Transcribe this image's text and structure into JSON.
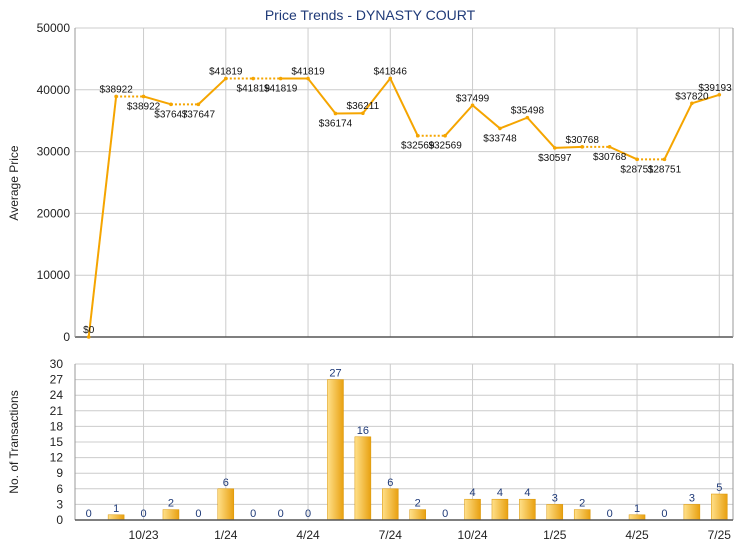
{
  "title": "Price Trends - DYNASTY COURT",
  "colors": {
    "line": "#f5a500",
    "bar_light": "#ffe08a",
    "bar_dark": "#e8a010",
    "grid": "#cccccc",
    "title": "#1f3a78"
  },
  "chart_data": [
    {
      "type": "line",
      "ylabel": "Average Price",
      "ylim": [
        0,
        50000
      ],
      "yticks": [
        0,
        10000,
        20000,
        30000,
        40000,
        50000
      ],
      "grid": true,
      "series": [
        {
          "values": [
            0,
            38922,
            38922,
            37647,
            37647,
            41819,
            41819,
            41819,
            41819,
            36174,
            36211,
            41846,
            32569,
            32569,
            37499,
            33748,
            35498,
            30597,
            30768,
            30768,
            28751,
            28751,
            37820,
            39193
          ],
          "labels": [
            "$0",
            "$38922",
            "$38922",
            "$37647",
            "$37647",
            "$41819",
            "$41819",
            "$41819",
            "$41819",
            "$36174",
            "$36211",
            "$41846",
            "$32569",
            "$32569",
            "$37499",
            "$33748",
            "$35498",
            "$30597",
            "$30768",
            "$30768",
            "$28751",
            "$28751",
            "$37820",
            "$39193"
          ],
          "no_transaction": [
            false,
            false,
            true,
            false,
            true,
            false,
            true,
            true,
            false,
            false,
            false,
            false,
            false,
            true,
            false,
            false,
            false,
            false,
            false,
            true,
            false,
            true,
            false,
            false
          ]
        }
      ]
    },
    {
      "type": "bar",
      "ylabel": "No. of Transactions",
      "ylim": [
        0,
        30
      ],
      "yticks": [
        0,
        3,
        6,
        9,
        12,
        15,
        18,
        21,
        24,
        27,
        30
      ],
      "grid": true,
      "values": [
        0,
        1,
        0,
        2,
        0,
        6,
        0,
        0,
        0,
        27,
        16,
        6,
        2,
        0,
        4,
        4,
        4,
        3,
        2,
        0,
        1,
        0,
        3,
        5
      ],
      "xticks": [
        {
          "index": 2,
          "label": "10/23"
        },
        {
          "index": 5,
          "label": "1/24"
        },
        {
          "index": 8,
          "label": "4/24"
        },
        {
          "index": 11,
          "label": "7/24"
        },
        {
          "index": 14,
          "label": "10/24"
        },
        {
          "index": 17,
          "label": "1/25"
        },
        {
          "index": 20,
          "label": "4/25"
        },
        {
          "index": 23,
          "label": "7/25"
        }
      ]
    }
  ]
}
